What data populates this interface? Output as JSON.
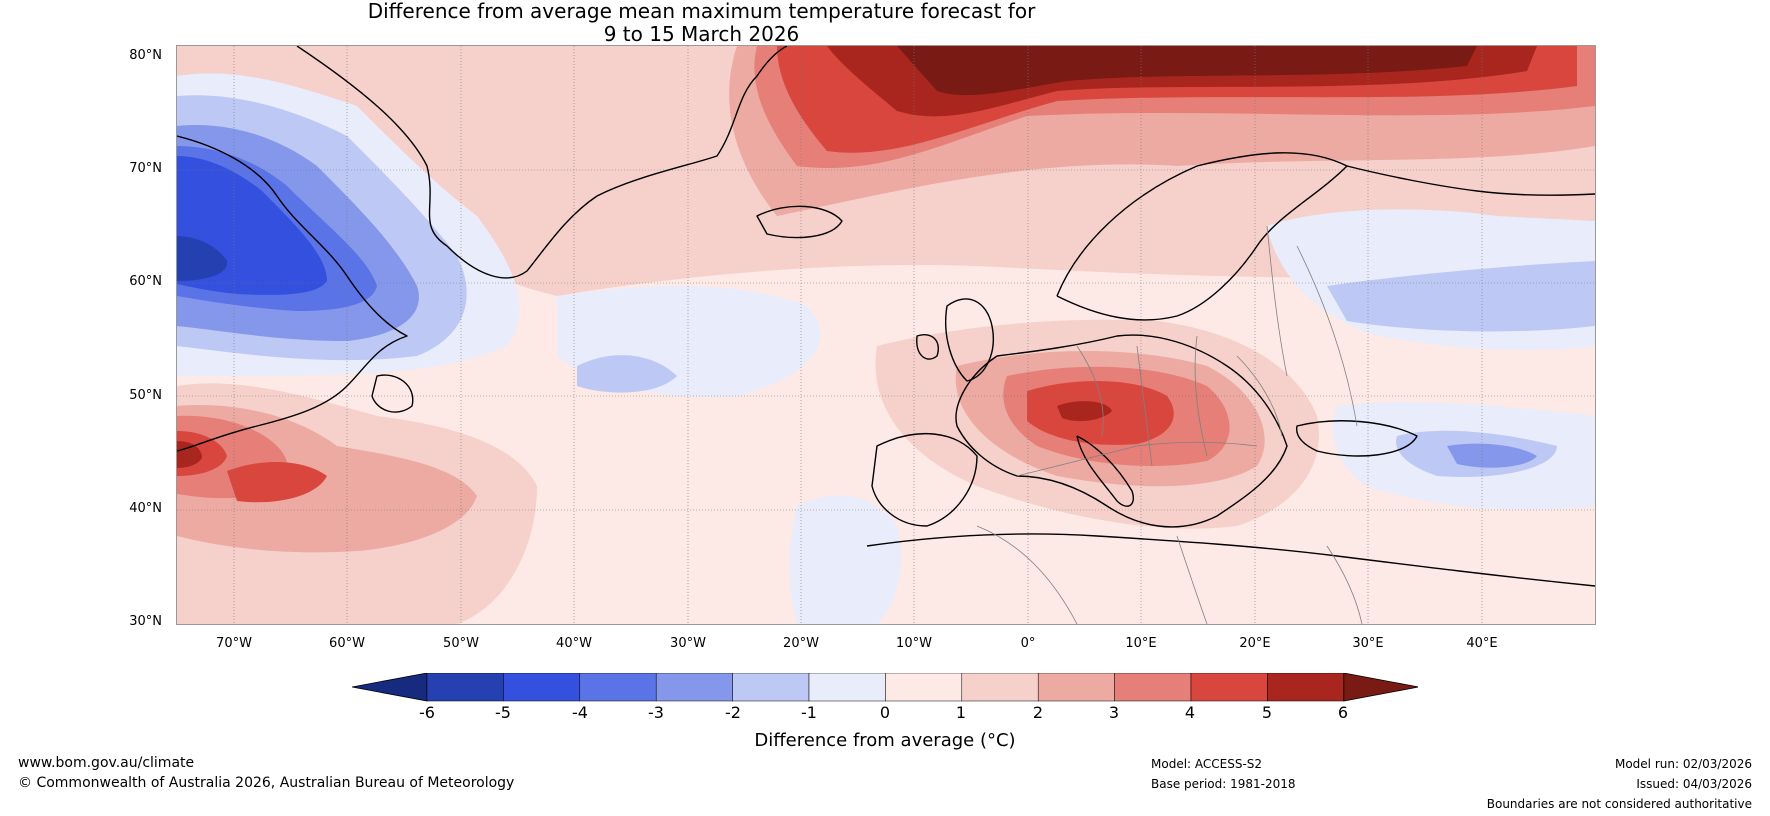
{
  "title": {
    "line1": "Difference from average mean maximum temperature forecast for",
    "line2": "9 to 15 March 2026"
  },
  "map": {
    "lat_labels": [
      "80°N",
      "70°N",
      "60°N",
      "50°N",
      "40°N",
      "30°N"
    ],
    "lon_labels": [
      "70°W",
      "60°W",
      "50°W",
      "40°W",
      "30°W",
      "20°W",
      "10°W",
      "0°",
      "10°E",
      "20°E",
      "30°E",
      "40°E"
    ],
    "colors": {
      "ocean_base": "#fde9e6",
      "land_line": "#000000",
      "border_line": "#808080"
    }
  },
  "colorbar": {
    "ticks": [
      "-6",
      "-5",
      "-4",
      "-3",
      "-2",
      "-1",
      "0",
      "1",
      "2",
      "3",
      "4",
      "5",
      "6"
    ],
    "colors": [
      "#162a80",
      "#2540b0",
      "#3350df",
      "#5a73e6",
      "#8597eb",
      "#bec8f4",
      "#e8ecfb",
      "#fde9e6",
      "#f6d0cb",
      "#edaaa3",
      "#e57f77",
      "#d8463e",
      "#a9261f",
      "#7a1a14"
    ],
    "label": "Difference from average (°C)"
  },
  "footer": {
    "website": "www.bom.gov.au/climate",
    "copyright": "© Commonwealth of Australia 2026, Australian Bureau of Meteorology",
    "model": "Model: ACCESS-S2",
    "base_period": "Base period: 1981-2018",
    "model_run": "Model run: 02/03/2026",
    "issued": "Issued: 04/03/2026",
    "disclaimer": "Boundaries are not considered authoritative"
  }
}
